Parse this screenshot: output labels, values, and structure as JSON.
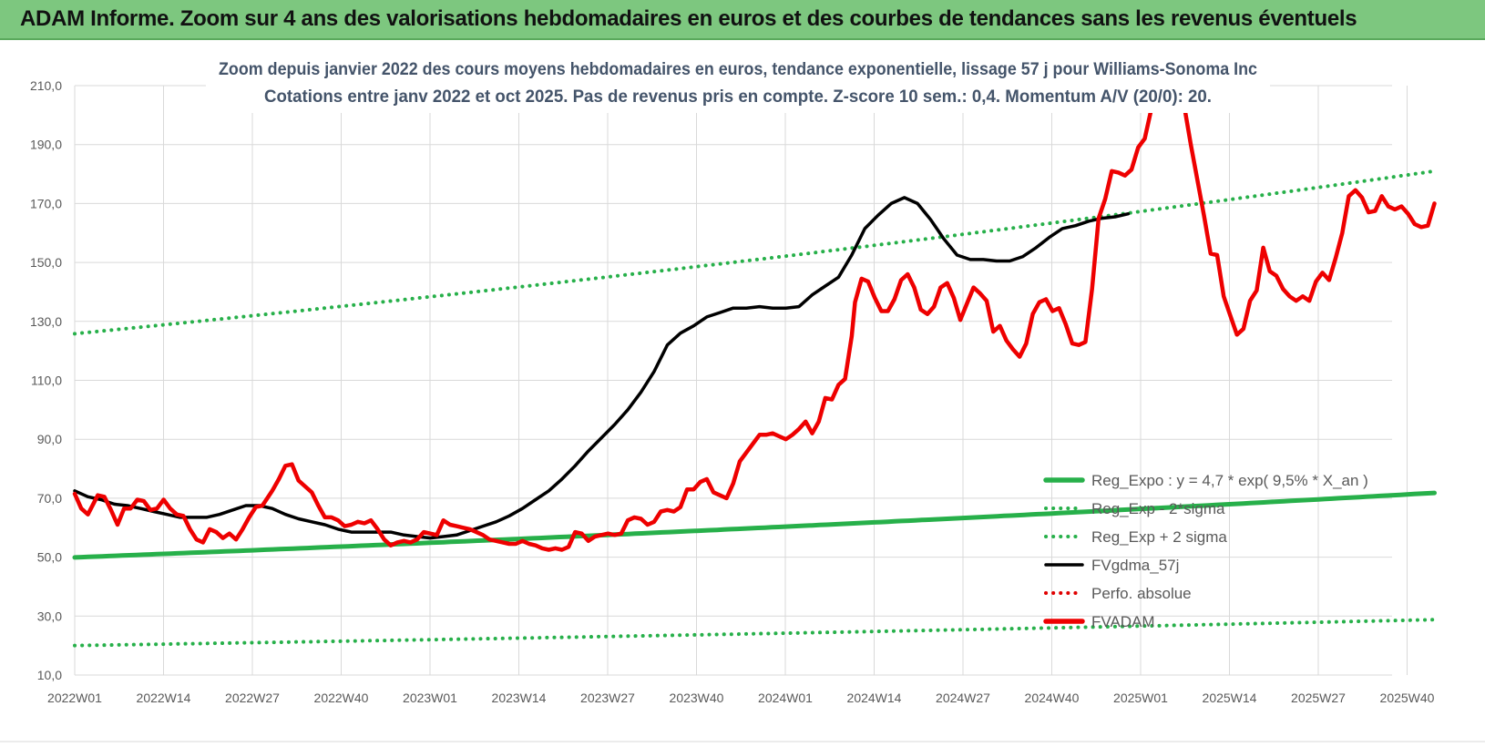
{
  "page": {
    "title": "ADAM Informe. Zoom sur 4 ans des valorisations hebdomadaires en euros et des courbes de tendances sans les revenus éventuels"
  },
  "chart_data": {
    "type": "line",
    "title": "Zoom depuis janvier 2022 des cours moyens hebdomadaires en euros, tendance exponentielle, lissage 57 j pour Williams-Sonoma Inc",
    "subtitle": "Cotations entre janv 2022 et oct 2025. Pas de revenus pris en compte. Z-score 10 sem.: 0,4. Momentum A/V (20/0): 20.",
    "xlabel": "",
    "ylabel": "",
    "ylim": [
      10,
      210
    ],
    "yticks": [
      "10,0",
      "30,0",
      "50,0",
      "70,0",
      "90,0",
      "110,0",
      "130,0",
      "150,0",
      "170,0",
      "190,0",
      "210,0"
    ],
    "xticks": [
      "2022W01",
      "2022W14",
      "2022W27",
      "2022W40",
      "2023W01",
      "2023W14",
      "2023W27",
      "2023W40",
      "2024W01",
      "2024W14",
      "2024W27",
      "2024W40",
      "2025W01",
      "2025W14",
      "2025W27",
      "2025W40"
    ],
    "x_range_weeks": [
      0,
      199
    ],
    "legend_position": "bottom-right",
    "series": [
      {
        "name": "Reg_Expo : y = 4,7 * exp( 9,5% * X_an )",
        "color": "#27b04a",
        "style": "solid-thick",
        "points": [
          [
            0,
            49.9
          ],
          [
            199,
            71.8
          ]
        ]
      },
      {
        "name": "Reg_Exp - 2*sigma",
        "color": "#27b04a",
        "style": "dotted",
        "points": [
          [
            0,
            20.0
          ],
          [
            199,
            28.8
          ]
        ]
      },
      {
        "name": "Reg_Exp + 2 sigma",
        "color": "#27b04a",
        "style": "dotted",
        "points": [
          [
            0,
            125.8
          ],
          [
            199,
            181.0
          ]
        ]
      },
      {
        "name": "FVgdma_57j",
        "color": "#000000",
        "style": "solid",
        "points": [
          [
            0,
            72.5
          ],
          [
            4,
            70.5
          ],
          [
            8,
            69.5
          ],
          [
            12,
            68.0
          ],
          [
            16,
            67.5
          ],
          [
            20,
            66.5
          ],
          [
            24,
            65.5
          ],
          [
            28,
            64.5
          ],
          [
            32,
            63.5
          ],
          [
            36,
            63.5
          ],
          [
            40,
            63.5
          ],
          [
            44,
            64.5
          ],
          [
            48,
            66.0
          ],
          [
            52,
            67.5
          ],
          [
            56,
            67.5
          ],
          [
            60,
            66.5
          ],
          [
            64,
            64.5
          ],
          [
            68,
            63.0
          ],
          [
            72,
            62.0
          ],
          [
            76,
            61.0
          ],
          [
            80,
            59.5
          ],
          [
            84,
            58.5
          ],
          [
            88,
            58.5
          ],
          [
            92,
            58.5
          ],
          [
            96,
            58.5
          ],
          [
            100,
            57.5
          ],
          [
            104,
            57.0
          ],
          [
            108,
            56.5
          ],
          [
            112,
            57.0
          ],
          [
            116,
            57.5
          ],
          [
            120,
            59.0
          ],
          [
            124,
            60.5
          ],
          [
            128,
            62.0
          ],
          [
            132,
            64.0
          ],
          [
            136,
            66.5
          ],
          [
            140,
            69.5
          ],
          [
            144,
            72.5
          ],
          [
            148,
            76.5
          ],
          [
            152,
            81.0
          ],
          [
            156,
            86.0
          ],
          [
            160,
            90.5
          ],
          [
            164,
            95.0
          ],
          [
            168,
            100.0
          ],
          [
            172,
            106.0
          ],
          [
            176,
            113.0
          ],
          [
            180,
            122.0
          ],
          [
            184,
            126.0
          ],
          [
            188,
            128.5
          ],
          [
            192,
            131.5
          ],
          [
            196,
            133.0
          ],
          [
            200,
            134.5
          ],
          [
            204,
            134.5
          ],
          [
            208,
            135.0
          ],
          [
            212,
            134.5
          ],
          [
            216,
            134.5
          ],
          [
            220,
            135.0
          ],
          [
            224,
            139.0
          ],
          [
            228,
            142.0
          ],
          [
            232,
            145.0
          ],
          [
            236,
            152.5
          ],
          [
            240,
            161.5
          ],
          [
            244,
            166.0
          ],
          [
            248,
            170.0
          ],
          [
            252,
            172.0
          ],
          [
            256,
            170.0
          ],
          [
            260,
            164.5
          ],
          [
            264,
            158.0
          ],
          [
            268,
            152.5
          ],
          [
            272,
            151.0
          ],
          [
            276,
            151.0
          ],
          [
            280,
            150.5
          ],
          [
            284,
            150.5
          ],
          [
            288,
            152.0
          ],
          [
            292,
            155.0
          ],
          [
            296,
            158.5
          ],
          [
            300,
            161.5
          ],
          [
            304,
            162.5
          ],
          [
            308,
            164.0
          ],
          [
            312,
            165.0
          ],
          [
            316,
            165.5
          ],
          [
            320,
            166.5
          ]
        ]
      },
      {
        "name": "Perfo. absolue",
        "color": "#e00000",
        "style": "dotted",
        "points": []
      },
      {
        "name": "FVADAM",
        "color": "#ee0000",
        "style": "solid-thick",
        "points": [
          [
            0,
            71.5
          ],
          [
            2,
            66.5
          ],
          [
            4,
            64.5
          ],
          [
            7,
            71.0
          ],
          [
            9,
            70.5
          ],
          [
            11,
            66.0
          ],
          [
            13,
            61.0
          ],
          [
            15,
            66.5
          ],
          [
            17,
            66.5
          ],
          [
            19,
            69.5
          ],
          [
            21,
            69.0
          ],
          [
            23,
            66.0
          ],
          [
            25,
            66.5
          ],
          [
            27,
            69.5
          ],
          [
            29,
            66.5
          ],
          [
            31,
            64.5
          ],
          [
            33,
            64.0
          ],
          [
            35,
            59.5
          ],
          [
            37,
            56.0
          ],
          [
            39,
            55.0
          ],
          [
            41,
            59.5
          ],
          [
            43,
            58.5
          ],
          [
            45,
            56.5
          ],
          [
            47,
            58.0
          ],
          [
            49,
            56.0
          ],
          [
            51,
            59.5
          ],
          [
            53,
            63.5
          ],
          [
            55,
            67.0
          ],
          [
            57,
            67.5
          ],
          [
            60,
            72.5
          ],
          [
            62,
            76.5
          ],
          [
            64,
            81.0
          ],
          [
            66,
            81.5
          ],
          [
            68,
            76.0
          ],
          [
            70,
            74.0
          ],
          [
            72,
            72.0
          ],
          [
            74,
            67.5
          ],
          [
            76,
            63.5
          ],
          [
            78,
            63.5
          ],
          [
            80,
            62.5
          ],
          [
            82,
            60.5
          ],
          [
            84,
            61.0
          ],
          [
            86,
            62.0
          ],
          [
            88,
            61.5
          ],
          [
            90,
            62.5
          ],
          [
            92,
            59.5
          ],
          [
            94,
            56.0
          ],
          [
            96,
            54.0
          ],
          [
            98,
            55.0
          ],
          [
            100,
            55.5
          ],
          [
            102,
            55.0
          ],
          [
            104,
            56.0
          ],
          [
            106,
            58.5
          ],
          [
            108,
            58.0
          ],
          [
            110,
            57.5
          ],
          [
            112,
            62.5
          ],
          [
            114,
            61.0
          ],
          [
            116,
            60.5
          ],
          [
            118,
            60.0
          ],
          [
            120,
            59.5
          ],
          [
            122,
            58.5
          ],
          [
            124,
            57.5
          ],
          [
            126,
            56.0
          ],
          [
            128,
            55.5
          ],
          [
            130,
            55.0
          ],
          [
            132,
            54.5
          ],
          [
            134,
            54.5
          ],
          [
            136,
            55.5
          ],
          [
            138,
            54.5
          ],
          [
            140,
            54.0
          ],
          [
            142,
            53.0
          ],
          [
            144,
            52.5
          ],
          [
            146,
            53.0
          ],
          [
            148,
            52.5
          ],
          [
            150,
            53.5
          ],
          [
            152,
            58.5
          ],
          [
            154,
            58.0
          ],
          [
            156,
            55.5
          ],
          [
            158,
            57.0
          ],
          [
            160,
            57.5
          ],
          [
            162,
            58.0
          ],
          [
            164,
            57.5
          ],
          [
            166,
            58.0
          ],
          [
            168,
            62.5
          ],
          [
            170,
            63.5
          ],
          [
            172,
            63.0
          ],
          [
            174,
            61.0
          ],
          [
            176,
            62.0
          ],
          [
            178,
            65.5
          ],
          [
            180,
            66.0
          ],
          [
            182,
            65.5
          ],
          [
            184,
            67.0
          ],
          [
            186,
            73.0
          ],
          [
            188,
            73.0
          ],
          [
            190,
            75.5
          ],
          [
            192,
            76.5
          ],
          [
            194,
            72.0
          ],
          [
            196,
            71.0
          ],
          [
            198,
            70.0
          ],
          [
            200,
            75.0
          ],
          [
            202,
            82.5
          ],
          [
            204,
            85.5
          ],
          [
            206,
            88.5
          ],
          [
            208,
            91.5
          ],
          [
            210,
            91.5
          ],
          [
            212,
            92.0
          ],
          [
            214,
            91.0
          ],
          [
            216,
            90.0
          ],
          [
            218,
            91.5
          ],
          [
            220,
            93.5
          ],
          [
            222,
            96.0
          ],
          [
            224,
            92.0
          ],
          [
            226,
            96.0
          ],
          [
            228,
            104.0
          ],
          [
            230,
            103.5
          ],
          [
            232,
            108.5
          ],
          [
            234,
            110.5
          ],
          [
            236,
            125.0
          ],
          [
            237,
            136.5
          ],
          [
            239,
            144.5
          ],
          [
            241,
            143.5
          ],
          [
            243,
            138.0
          ],
          [
            245,
            133.5
          ],
          [
            247,
            133.5
          ],
          [
            249,
            137.5
          ],
          [
            251,
            144.0
          ],
          [
            253,
            146.0
          ],
          [
            255,
            141.5
          ],
          [
            257,
            134.0
          ],
          [
            259,
            132.5
          ],
          [
            261,
            135.0
          ],
          [
            263,
            141.5
          ],
          [
            265,
            143.0
          ],
          [
            267,
            138.0
          ],
          [
            269,
            130.5
          ],
          [
            271,
            136.0
          ],
          [
            273,
            141.5
          ],
          [
            275,
            139.5
          ],
          [
            277,
            137.0
          ],
          [
            279,
            126.5
          ],
          [
            281,
            128.5
          ],
          [
            283,
            123.5
          ],
          [
            285,
            120.5
          ],
          [
            287,
            118.0
          ],
          [
            289,
            122.5
          ],
          [
            291,
            132.5
          ],
          [
            293,
            136.5
          ],
          [
            295,
            137.5
          ],
          [
            297,
            133.5
          ],
          [
            299,
            134.5
          ],
          [
            301,
            129.0
          ],
          [
            303,
            122.5
          ],
          [
            305,
            122.0
          ],
          [
            307,
            123.0
          ],
          [
            309,
            141.0
          ],
          [
            311,
            165.0
          ],
          [
            313,
            171.5
          ],
          [
            315,
            181.0
          ],
          [
            317,
            180.5
          ],
          [
            319,
            179.5
          ],
          [
            321,
            181.5
          ],
          [
            323,
            189.0
          ],
          [
            325,
            192.0
          ],
          [
            327,
            202.0
          ],
          [
            329,
            211.0
          ],
          [
            331,
            210.0
          ],
          [
            333,
            209.5
          ],
          [
            335,
            212.0
          ],
          [
            337,
            203.0
          ],
          [
            339,
            190.0
          ],
          [
            341,
            178.0
          ],
          [
            343,
            166.0
          ],
          [
            345,
            153.0
          ],
          [
            347,
            152.5
          ],
          [
            349,
            138.5
          ],
          [
            351,
            132.0
          ],
          [
            353,
            125.5
          ],
          [
            355,
            127.5
          ],
          [
            357,
            137.0
          ],
          [
            359,
            140.5
          ],
          [
            361,
            155.0
          ],
          [
            363,
            147.0
          ],
          [
            365,
            145.5
          ],
          [
            367,
            141.0
          ],
          [
            369,
            138.5
          ],
          [
            371,
            137.0
          ],
          [
            373,
            138.5
          ],
          [
            375,
            137.0
          ],
          [
            377,
            143.5
          ],
          [
            379,
            146.5
          ],
          [
            381,
            144.0
          ],
          [
            383,
            151.5
          ],
          [
            385,
            160.0
          ],
          [
            387,
            172.5
          ],
          [
            389,
            174.5
          ],
          [
            391,
            172.0
          ],
          [
            393,
            167.0
          ],
          [
            395,
            167.5
          ],
          [
            397,
            172.5
          ],
          [
            399,
            169.0
          ],
          [
            401,
            168.0
          ],
          [
            403,
            169.0
          ],
          [
            405,
            166.5
          ],
          [
            407,
            163.0
          ],
          [
            409,
            162.0
          ],
          [
            411,
            162.5
          ],
          [
            413,
            170.0
          ]
        ]
      }
    ]
  }
}
